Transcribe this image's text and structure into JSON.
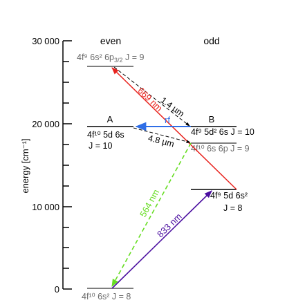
{
  "columns": {
    "even": "even",
    "odd": "odd"
  },
  "axis": {
    "ylabel": "energy [cm⁻¹]",
    "ticks": [
      "30 000",
      "20 000",
      "10 000",
      "0"
    ]
  },
  "levels": {
    "top_even": {
      "config": "4f⁹ 6s² 6p",
      "sub": "3/2",
      "j": " J = 9"
    },
    "a": {
      "letter": "A",
      "config": "4f¹⁰ 5d 6s",
      "j": "J = 10"
    },
    "b": {
      "letter": "B",
      "config": "4f⁹ 5d² 6s J = 10"
    },
    "odd_6p": {
      "config": "4f¹⁰ 6s 6p J = 9"
    },
    "odd_low": {
      "config": "4f⁹ 5d 6s²",
      "j": "J = 8"
    },
    "ground": {
      "config": "4f¹⁰ 6s² J = 8"
    }
  },
  "transitions": {
    "red": {
      "label": "669 nm",
      "color": "#e8231e"
    },
    "green": {
      "label": "564 nm",
      "color": "#66dd22"
    },
    "purple": {
      "label": "833 nm",
      "color": "#4b0fa0"
    },
    "rf": {
      "label": "rf",
      "color": "#2f6ee6"
    },
    "d14": {
      "label": "1.4 µm"
    },
    "d48": {
      "label": "4.8 µm"
    }
  },
  "colors": {
    "grey_text": "#6a6a6a",
    "black": "#000000"
  }
}
